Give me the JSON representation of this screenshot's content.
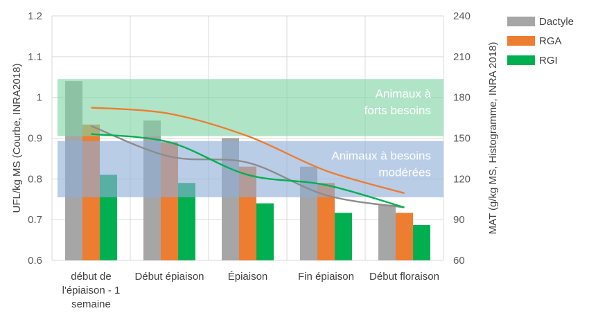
{
  "chart_data": {
    "type": "bar+line",
    "categories": [
      [
        "début de",
        "l'épiaison - 1",
        "semaine"
      ],
      [
        "Début épiaison"
      ],
      [
        "Épiaison"
      ],
      [
        "Fin épiaison"
      ],
      [
        "Début floraison"
      ]
    ],
    "left_axis": {
      "label": "UFL/kg MS (Courbe, INRA2018)",
      "min": 0.6,
      "max": 1.2,
      "ticks": [
        "0.6",
        "0.7",
        "0.8",
        "0.9",
        "1",
        "1.1",
        "1.2"
      ]
    },
    "right_axis": {
      "label": "MAT (g/kg MS, Histogramme, INRA 2018)",
      "min": 60,
      "max": 240,
      "ticks": [
        "60",
        "90",
        "120",
        "150",
        "180",
        "210",
        "240"
      ]
    },
    "bar_series": [
      {
        "name": "Dactyle",
        "color": "#a6a6a6",
        "values": [
          192,
          163,
          150,
          129,
          101
        ]
      },
      {
        "name": "RGA",
        "color": "#ed7d31",
        "values": [
          160,
          147,
          129,
          117,
          95
        ]
      },
      {
        "name": "RGI",
        "color": "#00b050",
        "values": [
          123,
          117,
          102,
          95,
          86
        ]
      }
    ],
    "line_series": [
      {
        "name": "RGA UFL",
        "color": "#ed7d31",
        "values": [
          0.975,
          0.96,
          0.905,
          0.82,
          0.765
        ]
      },
      {
        "name": "Dactyle UFL",
        "color": "#8c8c8c",
        "values": [
          0.93,
          0.855,
          0.84,
          0.76,
          0.73
        ]
      },
      {
        "name": "RGI UFL",
        "color": "#00b050",
        "values": [
          0.91,
          0.89,
          0.81,
          0.785,
          0.73
        ]
      }
    ],
    "bands": [
      {
        "label": [
          "Animaux à",
          "forts besoins"
        ],
        "ufl_from": 0.905,
        "ufl_to": 1.045,
        "color": "#7fd4a4"
      },
      {
        "label": [
          "Animaux à besoins",
          "modérées"
        ],
        "ufl_from": 0.755,
        "ufl_to": 0.893,
        "color": "#8eaed8"
      }
    ],
    "legend_position": "top-right"
  }
}
